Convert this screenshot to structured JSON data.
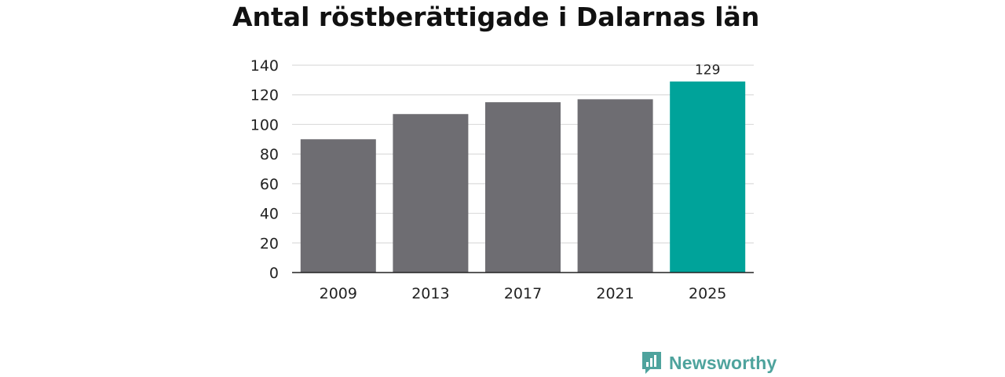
{
  "chart_data": {
    "type": "bar",
    "title": "Antal röstberättigade i Dalarnas län",
    "categories": [
      "2009",
      "2013",
      "2017",
      "2021",
      "2025"
    ],
    "values": [
      90,
      107,
      115,
      117,
      129
    ],
    "data_labels": [
      "",
      "",
      "",
      "",
      "129"
    ],
    "ylim": [
      0,
      140
    ],
    "yticks": [
      0,
      20,
      40,
      60,
      80,
      100,
      120,
      140
    ],
    "grid": true,
    "xlabel": "",
    "ylabel": "",
    "colors": {
      "default": "#6e6d72",
      "highlight": "#00a39a",
      "highlight_index": 4
    }
  },
  "brand": {
    "name": "Newsworthy",
    "icon": "newsworthy-logo-icon",
    "color": "#4ea39d"
  }
}
